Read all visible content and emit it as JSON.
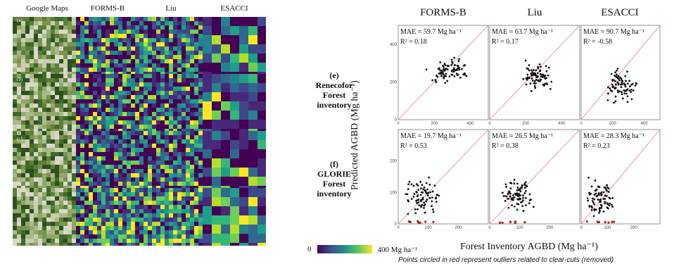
{
  "left_figure": {
    "column_headers": [
      "Google Maps",
      "FORMS-B",
      "Liu",
      "ESACCI"
    ],
    "row_labels": [
      "(a)",
      "(b)",
      "(c)",
      "(d)"
    ],
    "colorbar": {
      "min_label": "0",
      "max_label": "400 Mg ha⁻¹"
    }
  },
  "right_figure": {
    "column_headers": [
      "FORMS-B",
      "Liu",
      "ESACCI"
    ],
    "rows": [
      {
        "label_letter": "(e)",
        "label_lines": [
          "Renecofor",
          "Forest",
          "inventory"
        ]
      },
      {
        "label_letter": "(f)",
        "label_lines": [
          "GLORIE",
          "Forest",
          "inventory"
        ]
      }
    ],
    "ylabel": "Predicted AGBD (Mg ha⁻¹)",
    "xlabel": "Forest Inventory AGBD (Mg ha⁻¹)",
    "footnote": "Points circled in red represent outliers related to clear-cuts (removed)",
    "colors": {
      "points": "#111111",
      "outliers": "#b01c1c",
      "one_to_one": "#e08080"
    }
  },
  "chart_data": [
    {
      "type": "scatter",
      "panel": "e",
      "column": "FORMS-B",
      "mae": "MAE = 59.7 Mg ha⁻¹",
      "r2": "R² = 0.18",
      "xlim": [
        0,
        500
      ],
      "ylim": [
        0,
        500
      ],
      "xticks": [
        "0",
        "200",
        "400"
      ],
      "yticks": [
        "0",
        "200",
        "400"
      ],
      "seed": 11,
      "center": [
        280,
        260
      ],
      "spread": [
        90,
        70
      ]
    },
    {
      "type": "scatter",
      "panel": "e",
      "column": "Liu",
      "mae": "MAE = 63.7 Mg ha⁻¹",
      "r2": "R² = 0.17",
      "xlim": [
        0,
        500
      ],
      "ylim": [
        0,
        500
      ],
      "xticks": [
        "0",
        "200",
        "400"
      ],
      "yticks": [
        "0",
        "200",
        "400"
      ],
      "seed": 23,
      "center": [
        270,
        230
      ],
      "spread": [
        80,
        60
      ]
    },
    {
      "type": "scatter",
      "panel": "e",
      "column": "ESACCI",
      "mae": "MAE = 90.7 Mg ha⁻¹",
      "r2": "R² = -0.58",
      "xlim": [
        0,
        500
      ],
      "ylim": [
        0,
        500
      ],
      "xticks": [
        "0",
        "200",
        "400"
      ],
      "yticks": [
        "0",
        "200",
        "400"
      ],
      "seed": 37,
      "center": [
        250,
        180
      ],
      "spread": [
        90,
        80
      ]
    },
    {
      "type": "scatter",
      "panel": "f",
      "column": "FORMS-B",
      "mae": "MAE = 19.7 Mg ha⁻¹",
      "r2": "R² = 0.53",
      "xlim": [
        0,
        300
      ],
      "ylim": [
        0,
        300
      ],
      "xticks": [
        "0",
        "100",
        "200"
      ],
      "yticks": [
        "0",
        "100",
        "200"
      ],
      "seed": 41,
      "center": [
        80,
        90
      ],
      "spread": [
        50,
        55
      ]
    },
    {
      "type": "scatter",
      "panel": "f",
      "column": "Liu",
      "mae": "MAE = 26.5 Mg ha⁻¹",
      "r2": "R² = 0.38",
      "xlim": [
        0,
        300
      ],
      "ylim": [
        0,
        300
      ],
      "xticks": [
        "0",
        "100",
        "200"
      ],
      "yticks": [
        "0",
        "100",
        "200"
      ],
      "seed": 53,
      "center": [
        90,
        95
      ],
      "spread": [
        45,
        45
      ]
    },
    {
      "type": "scatter",
      "panel": "f",
      "column": "ESACCI",
      "mae": "MAE = 28.3 Mg ha⁻¹",
      "r2": "R² = 0.23",
      "xlim": [
        0,
        300
      ],
      "ylim": [
        0,
        300
      ],
      "xticks": [
        "0",
        "100",
        "200"
      ],
      "yticks": [
        "0",
        "100",
        "200"
      ],
      "seed": 67,
      "center": [
        80,
        80
      ],
      "spread": [
        50,
        50
      ]
    }
  ]
}
